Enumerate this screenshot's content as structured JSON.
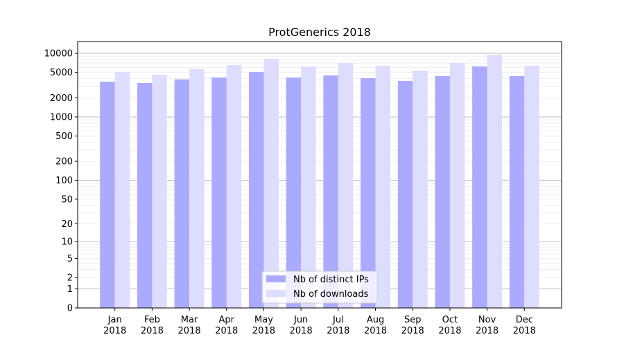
{
  "chart_data": {
    "type": "bar",
    "title": "ProtGenerics 2018",
    "xlabel": "",
    "ylabel": "",
    "yscale": "log10(y+1)",
    "ylim": [
      0,
      15300
    ],
    "grid": true,
    "legend_position": "bottom-center",
    "categories": [
      "Jan\n2018",
      "Feb\n2018",
      "Mar\n2018",
      "Apr\n2018",
      "May\n2018",
      "Jun\n2018",
      "Jul\n2018",
      "Aug\n2018",
      "Sep\n2018",
      "Oct\n2018",
      "Nov\n2018",
      "Dec\n2018"
    ],
    "yticks": [
      0,
      1,
      2,
      5,
      10,
      20,
      50,
      100,
      200,
      500,
      1000,
      2000,
      5000,
      10000
    ],
    "series": [
      {
        "name": "Nb of distinct IPs",
        "color": "#aaaaff",
        "values": [
          3580,
          3410,
          3890,
          4170,
          5090,
          4170,
          4490,
          4060,
          3670,
          4380,
          6210,
          4380
        ]
      },
      {
        "name": "Nb of downloads",
        "color": "#ddddff",
        "values": [
          5090,
          4600,
          5620,
          6530,
          8190,
          6210,
          7040,
          6370,
          5350,
          7040,
          9510,
          6370
        ]
      }
    ]
  }
}
